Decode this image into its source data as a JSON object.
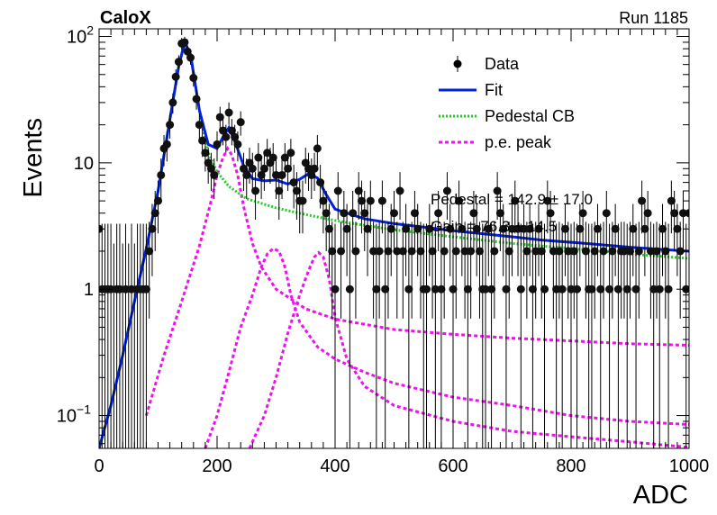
{
  "header": {
    "experiment": "CaloX",
    "run": "Run 1185"
  },
  "chart_data": {
    "type": "scatter",
    "xlabel": "ADC",
    "ylabel": "Events",
    "xlim": [
      0,
      1000
    ],
    "ylim": [
      0.055,
      115
    ],
    "yscale": "log",
    "grid": false,
    "legend_position": "top-right",
    "x_ticks": [
      "0",
      "200",
      "400",
      "600",
      "800",
      "1000"
    ],
    "y_ticks": [
      {
        "value": 100,
        "base": "10",
        "exp": "2"
      },
      {
        "value": 10,
        "label": "10"
      },
      {
        "value": 1,
        "label": "1"
      },
      {
        "value": 0.1,
        "base": "10",
        "exp": "−1"
      }
    ],
    "legend": [
      {
        "label": "Data",
        "style": "marker",
        "color": "#000000"
      },
      {
        "label": "Fit",
        "style": "solid",
        "color": "#0022dd"
      },
      {
        "label": "Pedestal CB",
        "style": "dotted",
        "color": "#22cc22"
      },
      {
        "label": "p.e. peak",
        "style": "dashed",
        "color": "#ee11ee"
      }
    ],
    "fit_params": [
      "Pedestal = 142.9 ± 17.0",
      "Gain = 76.3 ± 14.5"
    ],
    "data_points": [
      [
        0,
        3
      ],
      [
        5,
        1
      ],
      [
        10,
        1
      ],
      [
        15,
        1
      ],
      [
        20,
        1
      ],
      [
        25,
        0
      ],
      [
        30,
        1
      ],
      [
        35,
        1
      ],
      [
        40,
        0
      ],
      [
        45,
        1
      ],
      [
        50,
        0
      ],
      [
        55,
        1
      ],
      [
        60,
        0
      ],
      [
        65,
        1
      ],
      [
        70,
        1
      ],
      [
        75,
        1
      ],
      [
        80,
        1
      ],
      [
        85,
        2
      ],
      [
        90,
        3
      ],
      [
        95,
        4
      ],
      [
        100,
        5
      ],
      [
        105,
        8
      ],
      [
        110,
        13
      ],
      [
        115,
        14
      ],
      [
        120,
        20
      ],
      [
        125,
        30
      ],
      [
        130,
        48
      ],
      [
        135,
        63
      ],
      [
        140,
        88
      ],
      [
        145,
        90
      ],
      [
        150,
        76
      ],
      [
        155,
        68
      ],
      [
        160,
        47
      ],
      [
        165,
        32
      ],
      [
        170,
        20
      ],
      [
        175,
        15
      ],
      [
        180,
        12
      ],
      [
        185,
        10
      ],
      [
        190,
        9
      ],
      [
        195,
        8
      ],
      [
        200,
        14
      ],
      [
        205,
        23
      ],
      [
        210,
        18
      ],
      [
        215,
        16
      ],
      [
        220,
        25
      ],
      [
        225,
        18
      ],
      [
        230,
        16
      ],
      [
        235,
        14
      ],
      [
        240,
        21
      ],
      [
        245,
        9
      ],
      [
        250,
        8
      ],
      [
        255,
        10
      ],
      [
        260,
        9
      ],
      [
        265,
        6
      ],
      [
        270,
        11
      ],
      [
        275,
        8
      ],
      [
        280,
        9
      ],
      [
        285,
        12
      ],
      [
        290,
        10
      ],
      [
        295,
        11
      ],
      [
        300,
        8
      ],
      [
        305,
        6
      ],
      [
        310,
        8
      ],
      [
        315,
        11
      ],
      [
        320,
        9
      ],
      [
        325,
        12
      ],
      [
        330,
        7
      ],
      [
        335,
        6
      ],
      [
        340,
        5
      ],
      [
        345,
        5
      ],
      [
        350,
        10
      ],
      [
        355,
        9
      ],
      [
        360,
        8
      ],
      [
        365,
        9
      ],
      [
        370,
        13
      ],
      [
        375,
        7
      ],
      [
        380,
        5
      ],
      [
        385,
        4
      ],
      [
        390,
        3
      ],
      [
        395,
        2
      ],
      [
        400,
        1
      ],
      [
        405,
        6
      ],
      [
        410,
        2
      ],
      [
        415,
        4
      ],
      [
        420,
        3
      ],
      [
        425,
        1
      ],
      [
        430,
        4
      ],
      [
        435,
        2
      ],
      [
        440,
        6
      ],
      [
        445,
        5
      ],
      [
        450,
        4
      ],
      [
        455,
        3
      ],
      [
        460,
        5
      ],
      [
        465,
        2
      ],
      [
        470,
        1
      ],
      [
        475,
        2
      ],
      [
        480,
        5
      ],
      [
        485,
        1
      ],
      [
        490,
        2
      ],
      [
        495,
        3
      ],
      [
        500,
        4
      ],
      [
        505,
        2
      ],
      [
        510,
        6
      ],
      [
        515,
        2
      ],
      [
        520,
        3
      ],
      [
        525,
        1
      ],
      [
        530,
        2
      ],
      [
        535,
        4
      ],
      [
        540,
        3
      ],
      [
        545,
        2
      ],
      [
        550,
        1
      ],
      [
        555,
        1
      ],
      [
        560,
        3
      ],
      [
        565,
        2
      ],
      [
        570,
        1
      ],
      [
        575,
        4
      ],
      [
        580,
        1
      ],
      [
        585,
        2
      ],
      [
        590,
        6
      ],
      [
        595,
        3
      ],
      [
        600,
        1
      ],
      [
        605,
        2
      ],
      [
        610,
        5
      ],
      [
        615,
        3
      ],
      [
        620,
        2
      ],
      [
        625,
        1
      ],
      [
        630,
        2
      ],
      [
        635,
        4
      ],
      [
        640,
        3
      ],
      [
        645,
        2
      ],
      [
        650,
        1
      ],
      [
        655,
        1
      ],
      [
        660,
        3
      ],
      [
        665,
        1
      ],
      [
        670,
        2
      ],
      [
        675,
        6
      ],
      [
        680,
        4
      ],
      [
        685,
        3
      ],
      [
        690,
        1
      ],
      [
        695,
        2
      ],
      [
        700,
        3
      ],
      [
        705,
        5
      ],
      [
        710,
        3
      ],
      [
        715,
        1
      ],
      [
        720,
        3
      ],
      [
        725,
        2
      ],
      [
        730,
        3
      ],
      [
        735,
        1
      ],
      [
        740,
        2
      ],
      [
        745,
        3
      ],
      [
        750,
        2
      ],
      [
        755,
        1
      ],
      [
        760,
        5
      ],
      [
        765,
        4
      ],
      [
        770,
        2
      ],
      [
        775,
        1
      ],
      [
        780,
        2
      ],
      [
        785,
        1
      ],
      [
        790,
        3
      ],
      [
        795,
        2
      ],
      [
        800,
        1
      ],
      [
        805,
        2
      ],
      [
        810,
        1
      ],
      [
        815,
        3
      ],
      [
        820,
        4
      ],
      [
        825,
        2
      ],
      [
        830,
        1
      ],
      [
        835,
        1
      ],
      [
        840,
        2
      ],
      [
        845,
        3
      ],
      [
        850,
        1
      ],
      [
        855,
        2
      ],
      [
        860,
        4
      ],
      [
        865,
        1
      ],
      [
        870,
        2
      ],
      [
        875,
        3
      ],
      [
        880,
        1
      ],
      [
        885,
        2
      ],
      [
        890,
        2
      ],
      [
        895,
        1
      ],
      [
        900,
        2
      ],
      [
        905,
        3
      ],
      [
        910,
        1
      ],
      [
        915,
        2
      ],
      [
        920,
        5
      ],
      [
        925,
        3
      ],
      [
        930,
        4
      ],
      [
        935,
        2
      ],
      [
        940,
        1
      ],
      [
        945,
        2
      ],
      [
        950,
        1
      ],
      [
        955,
        3
      ],
      [
        960,
        2
      ],
      [
        965,
        1
      ],
      [
        970,
        5
      ],
      [
        975,
        4
      ],
      [
        980,
        3
      ],
      [
        985,
        2
      ],
      [
        990,
        4
      ],
      [
        995,
        1
      ],
      [
        1000,
        4
      ]
    ],
    "curves": {
      "fit": [
        [
          0,
          0.055
        ],
        [
          20,
          0.12
        ],
        [
          40,
          0.3
        ],
        [
          60,
          0.8
        ],
        [
          80,
          2.1
        ],
        [
          100,
          6
        ],
        [
          120,
          22
        ],
        [
          135,
          58
        ],
        [
          145,
          90
        ],
        [
          155,
          72
        ],
        [
          170,
          26
        ],
        [
          185,
          14
        ],
        [
          200,
          13
        ],
        [
          210,
          16
        ],
        [
          220,
          19
        ],
        [
          232,
          14
        ],
        [
          245,
          9.5
        ],
        [
          260,
          7.5
        ],
        [
          280,
          7.2
        ],
        [
          300,
          7.3
        ],
        [
          320,
          6.8
        ],
        [
          340,
          7.4
        ],
        [
          355,
          8.2
        ],
        [
          370,
          7.6
        ],
        [
          385,
          5.6
        ],
        [
          400,
          4.3
        ],
        [
          420,
          4
        ],
        [
          450,
          3.6
        ],
        [
          500,
          3.3
        ],
        [
          550,
          3.1
        ],
        [
          600,
          2.9
        ],
        [
          650,
          2.75
        ],
        [
          700,
          2.6
        ],
        [
          750,
          2.45
        ],
        [
          800,
          2.35
        ],
        [
          850,
          2.25
        ],
        [
          900,
          2.15
        ],
        [
          950,
          2.07
        ],
        [
          1000,
          2
        ]
      ],
      "pedestal": [
        [
          0,
          0.055
        ],
        [
          20,
          0.12
        ],
        [
          40,
          0.3
        ],
        [
          60,
          0.8
        ],
        [
          80,
          2.1
        ],
        [
          100,
          6
        ],
        [
          120,
          22
        ],
        [
          135,
          58
        ],
        [
          145,
          90
        ],
        [
          155,
          72
        ],
        [
          170,
          26
        ],
        [
          185,
          12
        ],
        [
          200,
          8.5
        ],
        [
          220,
          6.5
        ],
        [
          250,
          5.2
        ],
        [
          300,
          4.4
        ],
        [
          350,
          3.9
        ],
        [
          400,
          3.5
        ],
        [
          450,
          3.2
        ],
        [
          500,
          2.95
        ],
        [
          600,
          2.6
        ],
        [
          700,
          2.3
        ],
        [
          800,
          2.1
        ],
        [
          900,
          1.9
        ],
        [
          1000,
          1.75
        ]
      ],
      "pe_peaks": [
        [
          [
            80,
            0.1
          ],
          [
            110,
            0.3
          ],
          [
            140,
            0.8
          ],
          [
            170,
            2.2
          ],
          [
            190,
            5
          ],
          [
            200,
            8
          ],
          [
            210,
            11
          ],
          [
            218,
            13
          ],
          [
            225,
            11.5
          ],
          [
            235,
            8
          ],
          [
            245,
            4.5
          ],
          [
            260,
            2.3
          ],
          [
            275,
            1.5
          ],
          [
            300,
            1
          ],
          [
            350,
            0.7
          ],
          [
            400,
            0.58
          ],
          [
            500,
            0.48
          ],
          [
            600,
            0.44
          ],
          [
            700,
            0.41
          ],
          [
            800,
            0.39
          ],
          [
            900,
            0.37
          ],
          [
            1000,
            0.36
          ]
        ],
        [
          [
            180,
            0.055
          ],
          [
            200,
            0.1
          ],
          [
            220,
            0.22
          ],
          [
            240,
            0.5
          ],
          [
            260,
            0.9
          ],
          [
            275,
            1.5
          ],
          [
            285,
            1.9
          ],
          [
            295,
            2.1
          ],
          [
            305,
            2
          ],
          [
            315,
            1.5
          ],
          [
            325,
            0.9
          ],
          [
            340,
            0.55
          ],
          [
            370,
            0.35
          ],
          [
            400,
            0.28
          ],
          [
            450,
            0.22
          ],
          [
            500,
            0.18
          ],
          [
            600,
            0.14
          ],
          [
            700,
            0.12
          ],
          [
            800,
            0.1
          ],
          [
            900,
            0.09
          ],
          [
            1000,
            0.085
          ]
        ],
        [
          [
            255,
            0.055
          ],
          [
            280,
            0.1
          ],
          [
            300,
            0.2
          ],
          [
            320,
            0.45
          ],
          [
            340,
            0.9
          ],
          [
            355,
            1.4
          ],
          [
            365,
            1.8
          ],
          [
            372,
            1.95
          ],
          [
            380,
            1.8
          ],
          [
            390,
            1.2
          ],
          [
            400,
            0.6
          ],
          [
            420,
            0.28
          ],
          [
            450,
            0.17
          ],
          [
            500,
            0.12
          ],
          [
            600,
            0.09
          ],
          [
            700,
            0.075
          ],
          [
            800,
            0.068
          ],
          [
            900,
            0.062
          ],
          [
            1000,
            0.056
          ]
        ]
      ]
    }
  }
}
